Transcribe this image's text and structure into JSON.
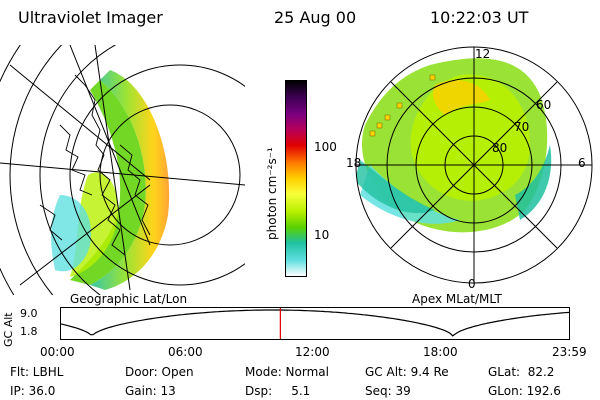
{
  "header": {
    "instrument": "Ultraviolet Imager",
    "date": "25 Aug 00",
    "time": "10:22:03 UT"
  },
  "colorbar": {
    "unit_label": "photon cm⁻²s⁻¹",
    "ticks": [
      "100",
      "10"
    ],
    "colors": [
      "#000000",
      "#3a0050",
      "#7a0080",
      "#b8005a",
      "#e00000",
      "#ff7a00",
      "#ffd000",
      "#f7ff3a",
      "#b8f000",
      "#5ad000",
      "#20c0a0",
      "#60e0e0",
      "#ffffff"
    ]
  },
  "left_panel": {
    "caption": "Geographic Lat/Lon"
  },
  "right_panel": {
    "caption": "Apex MLat/MLT",
    "mlt_labels": {
      "top": "12",
      "left": "18",
      "right": "6",
      "bottom": "0"
    },
    "mlat_labels": [
      "60",
      "70",
      "80"
    ]
  },
  "altitude_strip": {
    "axis_label": "GC Alt",
    "y_ticks": [
      "9.0",
      "1.8"
    ],
    "x_ticks": [
      "00:00",
      "06:00",
      "12:00",
      "18:00",
      "23:59"
    ],
    "current_time_marker_hour": 10.37
  },
  "footer": {
    "row1": {
      "flt": "Flt: LBHL",
      "door": "Door: Open",
      "mode": "Mode: Normal",
      "gc_alt": "GC Alt: 9.4 Re",
      "glat": "GLat:  82.2"
    },
    "row2": {
      "ip": "IP: 36.0",
      "gain": "Gain: 13",
      "dsp": "Dsp:     5.1",
      "seq": "Seq: 39",
      "glon": "GLon: 192.6"
    }
  }
}
